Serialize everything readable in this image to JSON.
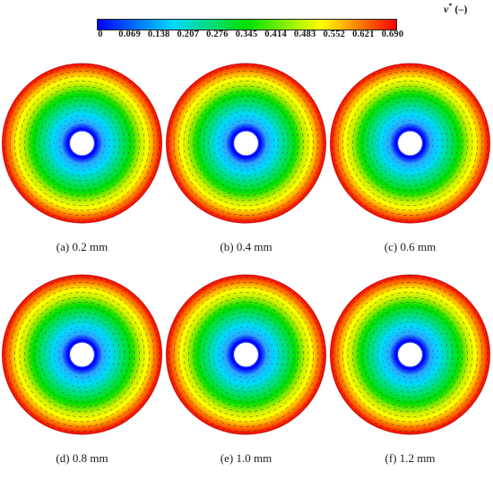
{
  "legend": {
    "variable": "v",
    "superscript": "*",
    "unit": "(–)",
    "ticks": [
      "0",
      "0.069",
      "0.138",
      "0.207",
      "0.276",
      "0.345",
      "0.414",
      "0.483",
      "0.552",
      "0.621",
      "0.690"
    ],
    "colormap": [
      "#0000ff",
      "#00d8ff",
      "#00e000",
      "#ffff00",
      "#ff0000"
    ]
  },
  "panels": [
    {
      "caption": "(a) 0.2 mm"
    },
    {
      "caption": "(b) 0.4 mm"
    },
    {
      "caption": "(c) 0.6 mm"
    },
    {
      "caption": "(d) 0.8 mm"
    },
    {
      "caption": "(e) 1.0 mm"
    },
    {
      "caption": "(f) 1.2 mm"
    }
  ]
}
